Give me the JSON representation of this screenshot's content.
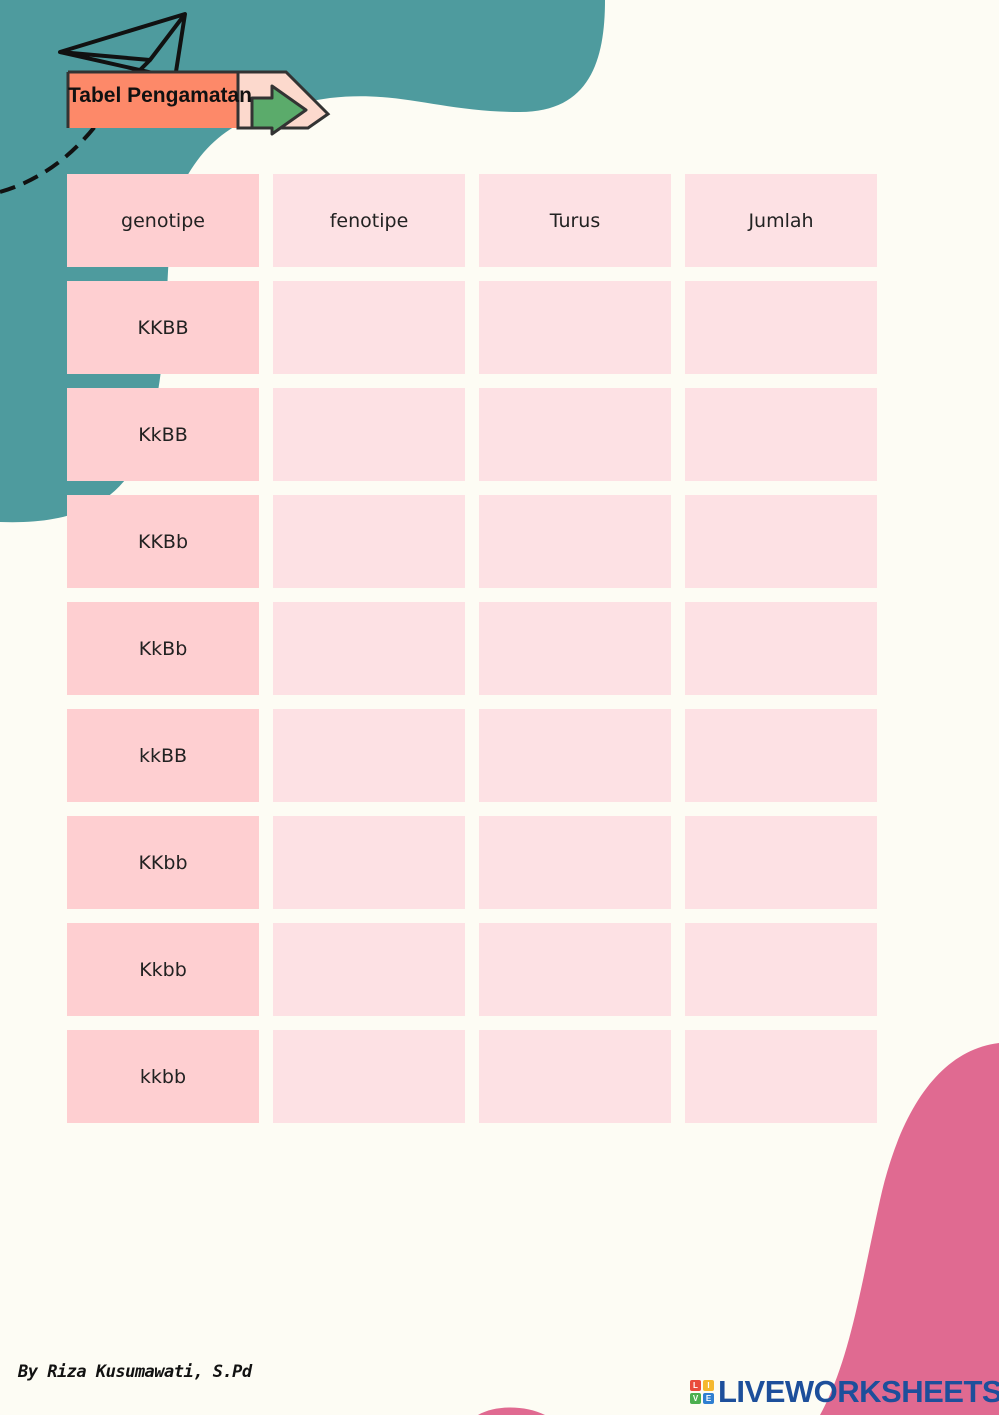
{
  "title": "Tabel Pengamatan",
  "table": {
    "headers": [
      "genotipe",
      "fenotipe",
      "Turus",
      "Jumlah"
    ],
    "rows": [
      [
        "KKBB",
        "",
        "",
        ""
      ],
      [
        "KkBB",
        "",
        "",
        ""
      ],
      [
        "KKBb",
        "",
        "",
        ""
      ],
      [
        "KkBb",
        "",
        "",
        ""
      ],
      [
        "kkBB",
        "",
        "",
        ""
      ],
      [
        "KKbb",
        "",
        "",
        ""
      ],
      [
        "Kkbb",
        "",
        "",
        ""
      ],
      [
        "kkbb",
        "",
        "",
        ""
      ]
    ]
  },
  "footer": {
    "author": "By Riza Kusumawati, S.Pd",
    "brand": "LIVEWORKSHEETS",
    "brand_icon_letters": [
      "L",
      "I",
      "V",
      "E"
    ]
  },
  "colors": {
    "teal_blob": "#4e9b9e",
    "pink_blob": "#e06a91",
    "header_cell": "#fecfd1",
    "cell": "#fde1e4",
    "banner_orange": "#fd8969",
    "arrow_green": "#5bab6b",
    "brand_blue": "#1d4f9b"
  }
}
